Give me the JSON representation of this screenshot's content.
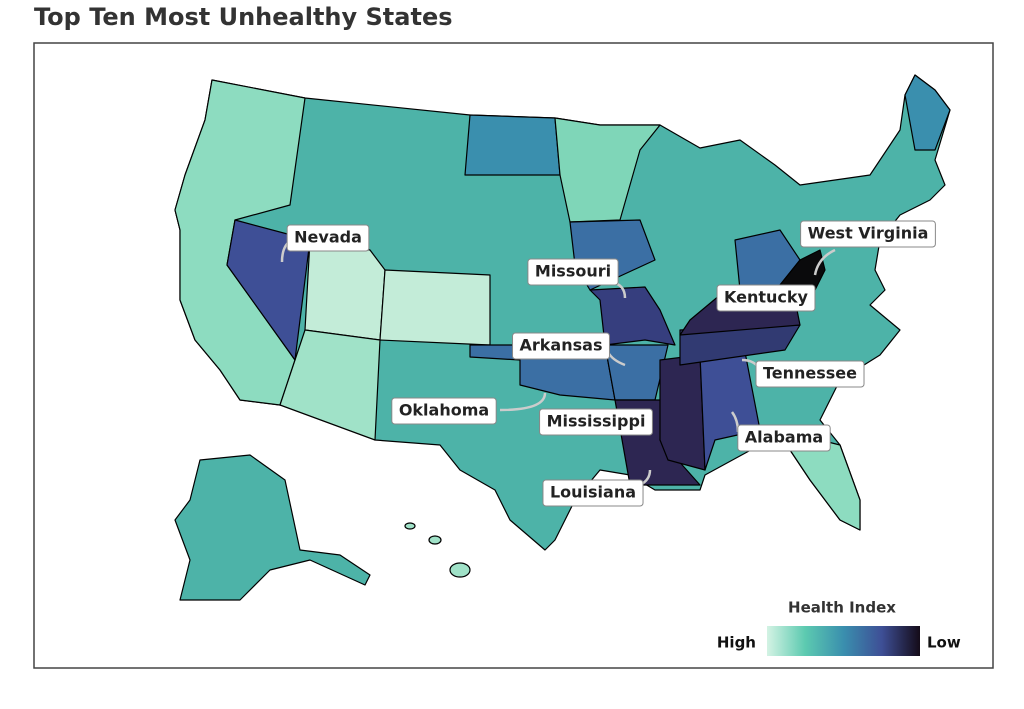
{
  "title": "Top Ten Most Unhealthy States",
  "labels": [
    "Nevada",
    "West Virginia",
    "Missouri",
    "Kentucky",
    "Arkansas",
    "Tennessee",
    "Oklahoma",
    "Mississippi",
    "Alabama",
    "Louisiana"
  ],
  "legend": {
    "title": "Health Index",
    "start": "High",
    "end": "Low"
  }
}
